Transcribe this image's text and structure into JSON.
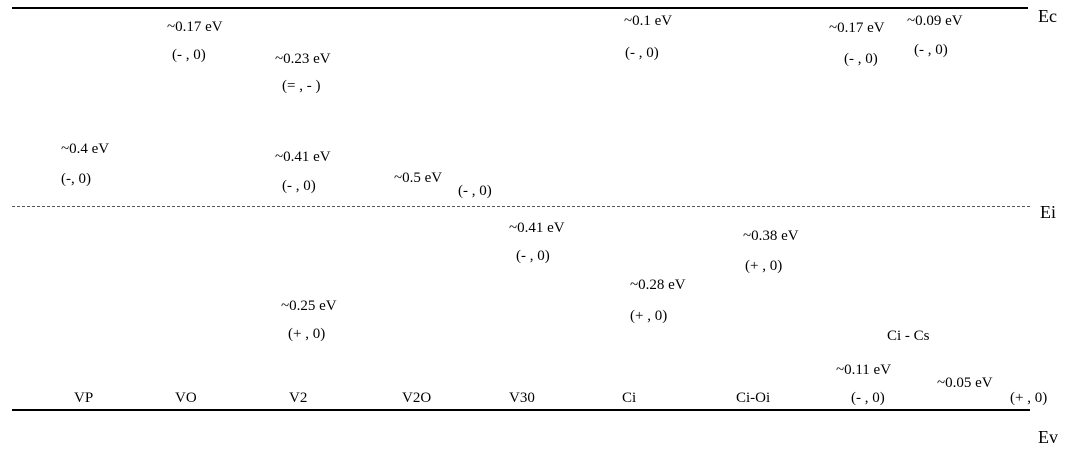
{
  "bands": {
    "ec": "Ec",
    "ei": "Ei",
    "ev": "Ev"
  },
  "defects": [
    {
      "name": "VP",
      "levels": [
        {
          "energy": "~0.4 eV",
          "charge": "(-, 0)"
        }
      ]
    },
    {
      "name": "VO",
      "levels": [
        {
          "energy": "~0.17 eV",
          "charge": "(- , 0)"
        }
      ]
    },
    {
      "name": "V2",
      "levels": [
        {
          "energy": "~0.23 eV",
          "charge": "(= , - )"
        },
        {
          "energy": "~0.41 eV",
          "charge": "(- , 0)"
        },
        {
          "energy": "~0.25 eV",
          "charge": "(+ , 0)"
        }
      ]
    },
    {
      "name": "V2O",
      "levels": [
        {
          "energy": "~0.5 eV",
          "charge": "(- , 0)"
        }
      ]
    },
    {
      "name": "V30",
      "levels": [
        {
          "energy": "~0.41 eV",
          "charge": "(- , 0)"
        }
      ]
    },
    {
      "name": "Ci",
      "levels": [
        {
          "energy": "~0.1 eV",
          "charge": "(- , 0)"
        },
        {
          "energy": "~0.28 eV",
          "charge": "(+ , 0)"
        }
      ]
    },
    {
      "name": "Ci-Oi",
      "levels": [
        {
          "energy": "~0.17 eV",
          "charge": "(- , 0)"
        },
        {
          "energy": "~0.38 eV",
          "charge": "(+ , 0)"
        },
        {
          "energy": "~0.11 eV",
          "charge": "(- , 0)"
        }
      ]
    },
    {
      "name": "Ci - Cs",
      "levels": [
        {
          "energy": "~0.09 eV",
          "charge": "(- , 0)"
        },
        {
          "energy": "~0.05 eV",
          "charge": "(+ , 0)"
        }
      ]
    }
  ]
}
